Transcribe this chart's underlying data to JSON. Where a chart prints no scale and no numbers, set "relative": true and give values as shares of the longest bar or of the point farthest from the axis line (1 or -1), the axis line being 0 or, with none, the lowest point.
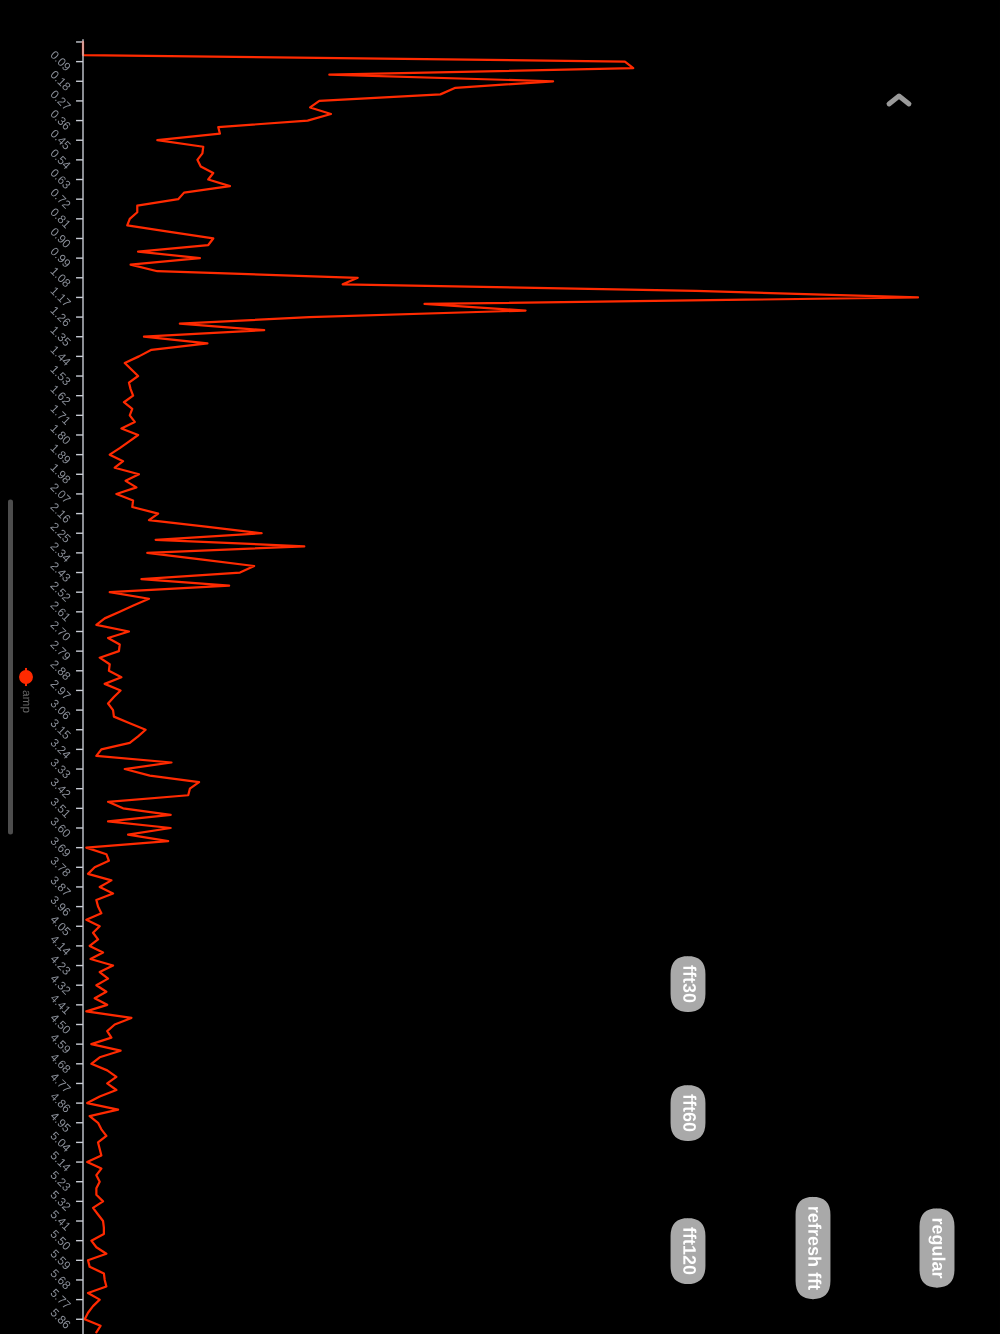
{
  "chart_data": {
    "type": "line",
    "orientation": "horizontal",
    "relative": true,
    "categories": [
      null,
      null,
      null,
      "0.09",
      null,
      null,
      "0.18",
      null,
      null,
      "0.27",
      null,
      null,
      "0.36",
      null,
      null,
      "0.45",
      null,
      null,
      "0.54",
      null,
      null,
      "0.63",
      null,
      null,
      "0.72",
      null,
      null,
      "0.81",
      null,
      null,
      "0.90",
      null,
      null,
      "0.99",
      null,
      null,
      "1.08",
      null,
      null,
      "1.17",
      null,
      null,
      "1.26",
      null,
      null,
      "1.35",
      null,
      null,
      "1.44",
      null,
      null,
      "1.53",
      null,
      null,
      "1.62",
      null,
      null,
      "1.71",
      null,
      null,
      "1.80",
      null,
      null,
      "1.89",
      null,
      null,
      "1.98",
      null,
      null,
      "2.07",
      null,
      null,
      "2.16",
      null,
      null,
      "2.25",
      null,
      null,
      "2.34",
      null,
      null,
      "2.43",
      null,
      null,
      "2.52",
      null,
      null,
      "2.61",
      null,
      null,
      "2.70",
      null,
      null,
      "2.79",
      null,
      null,
      "2.88",
      null,
      null,
      "2.97",
      null,
      null,
      "3.06",
      null,
      null,
      "3.15",
      null,
      null,
      "3.24",
      null,
      null,
      "3.33",
      null,
      null,
      "3.42",
      null,
      null,
      "3.51",
      null,
      null,
      "3.60",
      null,
      null,
      "3.69",
      null,
      null,
      "3.78",
      null,
      null,
      "3.87",
      null,
      null,
      "3.96",
      null,
      null,
      "4.05",
      null,
      null,
      "4.14",
      null,
      null,
      "4.23",
      null,
      null,
      "4.32",
      null,
      null,
      "4.41",
      null,
      null,
      "4.50",
      null,
      null,
      "4.59",
      null,
      null,
      "4.68",
      null,
      null,
      "4.77",
      null,
      null,
      "4.86",
      null,
      null,
      "4.95",
      null,
      null,
      "5.04",
      null,
      null,
      "5.14",
      null,
      null,
      "5.23",
      null,
      null,
      "5.32",
      null,
      null,
      "5.41",
      null,
      null,
      "5.50",
      null,
      null,
      "5.59",
      null,
      null,
      "5.68",
      null,
      null,
      "5.77",
      null,
      null,
      "5.86",
      null,
      null
    ],
    "series": [
      {
        "name": "amp",
        "color": "#ff2a00",
        "values": [
          0,
          0,
          0,
          0.649,
          0.659,
          0.295,
          0.563,
          0.446,
          0.428,
          0.283,
          0.272,
          0.297,
          0.269,
          0.162,
          0.164,
          0.089,
          0.144,
          0.143,
          0.137,
          0.141,
          0.156,
          0.15,
          0.176,
          0.121,
          0.114,
          0.065,
          0.065,
          0.056,
          0.053,
          0.104,
          0.156,
          0.15,
          0.066,
          0.14,
          0.057,
          0.089,
          0.329,
          0.311,
          0.734,
          1,
          0.409,
          0.53,
          0.271,
          0.116,
          0.217,
          0.073,
          0.149,
          0.082,
          0.067,
          0.05,
          0.058,
          0.066,
          0.055,
          0.057,
          0.06,
          0.049,
          0.059,
          0.056,
          0.062,
          0.046,
          0.066,
          0.055,
          0.044,
          0.032,
          0.048,
          0.038,
          0.067,
          0.051,
          0.064,
          0.04,
          0.06,
          0.059,
          0.09,
          0.079,
          0.147,
          0.214,
          0.087,
          0.265,
          0.077,
          0.141,
          0.205,
          0.188,
          0.07,
          0.175,
          0.032,
          0.079,
          0.061,
          0.044,
          0.026,
          0.016,
          0.055,
          0.03,
          0.044,
          0.043,
          0.02,
          0.032,
          0.031,
          0.046,
          0.026,
          0.045,
          0.037,
          0.03,
          0.036,
          0.037,
          0.056,
          0.075,
          0.066,
          0.056,
          0.022,
          0.016,
          0.106,
          0.05,
          0.08,
          0.139,
          0.128,
          0.126,
          0.03,
          0.048,
          0.105,
          0.03,
          0.105,
          0.054,
          0.102,
          0.004,
          0.028,
          0.031,
          0.014,
          0.006,
          0.034,
          0.02,
          0.036,
          0.016,
          0.018,
          0.022,
          0.004,
          0.02,
          0.012,
          0.018,
          0.008,
          0.024,
          0.009,
          0.036,
          0.02,
          0.03,
          0.016,
          0.028,
          0.014,
          0.029,
          0.004,
          0.058,
          0.038,
          0.029,
          0.034,
          0.01,
          0.045,
          0.02,
          0.01,
          0.029,
          0.04,
          0.029,
          0.04,
          0.02,
          0.005,
          0.042,
          0.008,
          0.018,
          0.022,
          0.028,
          0.018,
          0.02,
          0.022,
          0.005,
          0.022,
          0.016,
          0.02,
          0.016,
          0.016,
          0.024,
          0.012,
          0.018,
          0.024,
          0.025,
          0.025,
          0.01,
          0.016,
          0.028,
          0.006,
          0.008,
          0.025,
          0.026,
          0.028,
          0.006,
          0.02,
          0.012,
          0.006,
          0.002,
          0.021,
          0.016
        ]
      }
    ],
    "legend": "left",
    "annotations": [
      "fft30",
      "fft60",
      "fft120",
      "refresh fft",
      "regular"
    ]
  }
}
